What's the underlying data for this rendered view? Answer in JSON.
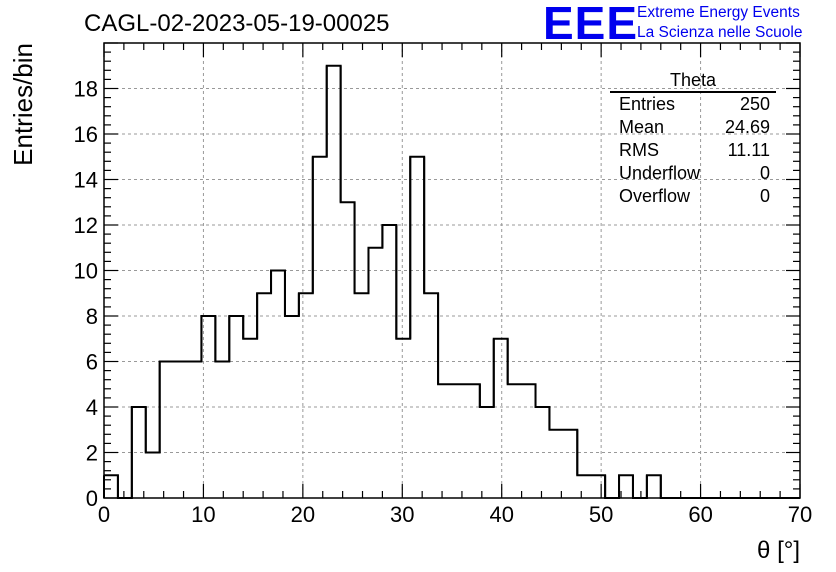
{
  "header": {
    "run_title": "CAGL-02-2023-05-19-00025",
    "logo_text": "EEE",
    "logo_line1": "Extreme Energy Events",
    "logo_line2": "La Scienza nelle Scuole",
    "logo_color": "#0000ee"
  },
  "stats_box": {
    "name": "Theta",
    "rows": [
      {
        "label": "Entries",
        "value": "250"
      },
      {
        "label": "Mean",
        "value": "24.69"
      },
      {
        "label": "RMS",
        "value": "11.11"
      },
      {
        "label": "Underflow",
        "value": "0"
      },
      {
        "label": "Overflow",
        "value": "0"
      }
    ]
  },
  "chart_data": {
    "type": "histogram",
    "title": "",
    "xlabel": "θ [°]",
    "ylabel": "Entries/bin",
    "xlim": [
      0,
      70
    ],
    "ylim": [
      0,
      20
    ],
    "grid": true,
    "line_color": "#000000",
    "x_ticks": [
      0,
      10,
      20,
      30,
      40,
      50,
      60,
      70
    ],
    "y_ticks": [
      0,
      2,
      4,
      6,
      8,
      10,
      12,
      14,
      16,
      18
    ],
    "bin_width": 1.4,
    "bin_edges_start": 0,
    "values": [
      1,
      0,
      4,
      2,
      6,
      6,
      6,
      8,
      6,
      8,
      7,
      9,
      10,
      8,
      9,
      15,
      19,
      13,
      9,
      11,
      12,
      7,
      15,
      9,
      5,
      5,
      5,
      4,
      7,
      5,
      5,
      4,
      3,
      3,
      1,
      1,
      0,
      1,
      0,
      1,
      0,
      0,
      0,
      0,
      0,
      0,
      0,
      0,
      0,
      0
    ]
  }
}
